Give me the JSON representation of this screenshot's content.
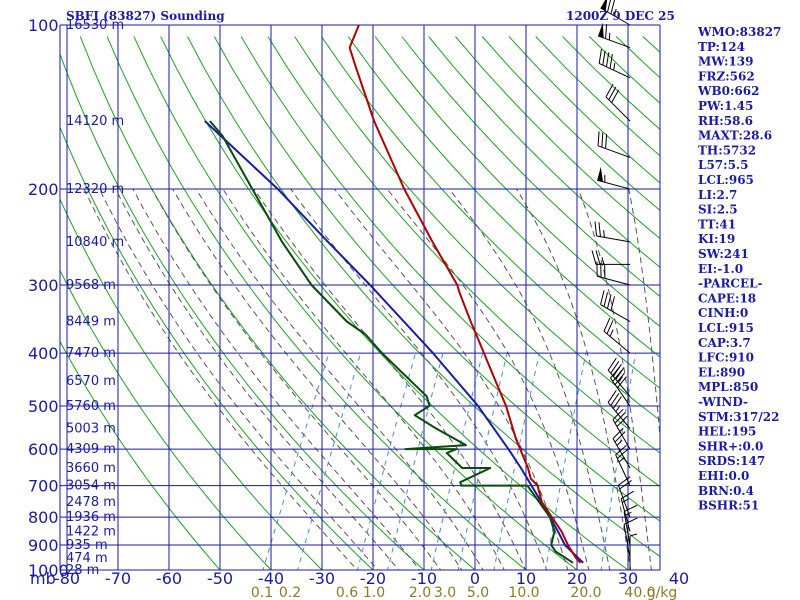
{
  "chart_data": {
    "type": "skew-t log-p sounding",
    "title": "SBFI (83827) Sounding",
    "time": "1200Z  9 DEC 25",
    "pressure_axis_label": "mb",
    "pressure_ticks": [
      100,
      200,
      300,
      400,
      500,
      600,
      700,
      800,
      900,
      1000
    ],
    "temperature_ticks": [
      -80,
      -70,
      -60,
      -50,
      -40,
      -30,
      -20,
      -10,
      0,
      10,
      20,
      30,
      40
    ],
    "temperature_tick_labels": [
      "-80",
      "-70",
      "-60",
      "-50",
      "-40",
      "-30",
      "-20",
      "-10",
      "0",
      "10",
      "20",
      "30",
      "40"
    ],
    "mixing_ratio_labels": [
      "0.1",
      "0.2",
      "0.6",
      "1.0",
      "2.0",
      "3.0",
      "5.0",
      "10.0",
      "20.0",
      "40.0",
      "g/kg"
    ],
    "mixing_ratio_values": [
      0.1,
      0.2,
      0.6,
      1.0,
      2.0,
      3.0,
      5.0,
      10.0,
      20.0,
      40.0
    ],
    "height_labels": [
      {
        "p": 100,
        "label": "16530 m"
      },
      {
        "p": 150,
        "label": "14120 m"
      },
      {
        "p": 200,
        "label": "12320 m"
      },
      {
        "p": 250,
        "label": "10840 m"
      },
      {
        "p": 300,
        "label": "9568 m"
      },
      {
        "p": 350,
        "label": "8449 m"
      },
      {
        "p": 400,
        "label": "7470 m"
      },
      {
        "p": 450,
        "label": "6570 m"
      },
      {
        "p": 500,
        "label": "5760 m"
      },
      {
        "p": 550,
        "label": "5003 m"
      },
      {
        "p": 600,
        "label": "4309 m"
      },
      {
        "p": 650,
        "label": "3660 m"
      },
      {
        "p": 700,
        "label": "3054 m"
      },
      {
        "p": 750,
        "label": "2478 m"
      },
      {
        "p": 800,
        "label": "1936 m"
      },
      {
        "p": 850,
        "label": "1422 m"
      },
      {
        "p": 900,
        "label": "935 m"
      },
      {
        "p": 950,
        "label": "474 m"
      },
      {
        "p": 1000,
        "label": "28 m"
      }
    ],
    "temperature_profile": {
      "name": "Temperature",
      "color": "#b00000",
      "points": [
        {
          "p": 970,
          "t": 20.0
        },
        {
          "p": 950,
          "t": 18.6
        },
        {
          "p": 925,
          "t": 17.2
        },
        {
          "p": 900,
          "t": 15.8
        },
        {
          "p": 850,
          "t": 13.2
        },
        {
          "p": 800,
          "t": 9.9
        },
        {
          "p": 750,
          "t": 6.4
        },
        {
          "p": 700,
          "t": 4.0
        },
        {
          "p": 680,
          "t": 2.0
        },
        {
          "p": 650,
          "t": 0.4
        },
        {
          "p": 600,
          "t": -3.0
        },
        {
          "p": 575,
          "t": -4.8
        },
        {
          "p": 500,
          "t": -10.0
        },
        {
          "p": 450,
          "t": -14.5
        },
        {
          "p": 400,
          "t": -19.5
        },
        {
          "p": 350,
          "t": -25.2
        },
        {
          "p": 310,
          "t": -30.2
        },
        {
          "p": 300,
          "t": -31.4
        },
        {
          "p": 250,
          "t": -40.5
        },
        {
          "p": 200,
          "t": -51.2
        },
        {
          "p": 150,
          "t": -63.8
        },
        {
          "p": 120,
          "t": -72.5
        },
        {
          "p": 110,
          "t": -75.8
        },
        {
          "p": 100,
          "t": -76.2
        }
      ]
    },
    "dewpoint_profile": {
      "name": "Dewpoint",
      "color": "#0a4a0a",
      "points": [
        {
          "p": 970,
          "t": 18.5
        },
        {
          "p": 925,
          "t": 14.0
        },
        {
          "p": 900,
          "t": 12.5
        },
        {
          "p": 850,
          "t": 11.8
        },
        {
          "p": 800,
          "t": 9.5
        },
        {
          "p": 700,
          "t": 2.0
        },
        {
          "p": 700,
          "t": -11.0
        },
        {
          "p": 690,
          "t": -11.5
        },
        {
          "p": 650,
          "t": -7.0
        },
        {
          "p": 650,
          "t": -12.5
        },
        {
          "p": 610,
          "t": -17.0
        },
        {
          "p": 600,
          "t": -15.5
        },
        {
          "p": 600,
          "t": -25.5
        },
        {
          "p": 590,
          "t": -14.0
        },
        {
          "p": 550,
          "t": -21.5
        },
        {
          "p": 520,
          "t": -27.0
        },
        {
          "p": 500,
          "t": -25.0
        },
        {
          "p": 480,
          "t": -26.5
        },
        {
          "p": 400,
          "t": -39.5
        },
        {
          "p": 370,
          "t": -44.5
        },
        {
          "p": 350,
          "t": -49.5
        },
        {
          "p": 300,
          "t": -60.0
        },
        {
          "p": 250,
          "t": -70.0
        },
        {
          "p": 200,
          "t": -81.0
        },
        {
          "p": 160,
          "t": -92.0
        },
        {
          "p": 150,
          "t": -96.0
        }
      ]
    },
    "parcel_profile": {
      "name": "Parcel",
      "color": "#1a1aaa",
      "points": [
        {
          "p": 970,
          "t": 20.5
        },
        {
          "p": 900,
          "t": 15.2
        },
        {
          "p": 850,
          "t": 12.5
        },
        {
          "p": 800,
          "t": 9.5
        },
        {
          "p": 750,
          "t": 6.3
        },
        {
          "p": 700,
          "t": 2.8
        },
        {
          "p": 650,
          "t": -1.0
        },
        {
          "p": 600,
          "t": -5.3
        },
        {
          "p": 500,
          "t": -15.5
        },
        {
          "p": 400,
          "t": -29.5
        },
        {
          "p": 300,
          "t": -48.5
        },
        {
          "p": 250,
          "t": -61.0
        },
        {
          "p": 200,
          "t": -76.0
        },
        {
          "p": 150,
          "t": -97.0
        }
      ]
    },
    "wind_barbs": [
      {
        "p": 100,
        "dir": 300,
        "spd": 75
      },
      {
        "p": 110,
        "dir": 290,
        "spd": 65
      },
      {
        "p": 125,
        "dir": 295,
        "spd": 45
      },
      {
        "p": 150,
        "dir": 315,
        "spd": 30
      },
      {
        "p": 175,
        "dir": 290,
        "spd": 30
      },
      {
        "p": 200,
        "dir": 285,
        "spd": 55
      },
      {
        "p": 250,
        "dir": 280,
        "spd": 25
      },
      {
        "p": 275,
        "dir": 270,
        "spd": 25
      },
      {
        "p": 300,
        "dir": 285,
        "spd": 30
      },
      {
        "p": 350,
        "dir": 300,
        "spd": 40
      },
      {
        "p": 400,
        "dir": 310,
        "spd": 25
      },
      {
        "p": 480,
        "dir": 320,
        "spd": 45
      },
      {
        "p": 500,
        "dir": 325,
        "spd": 40
      },
      {
        "p": 550,
        "dir": 320,
        "spd": 35
      },
      {
        "p": 600,
        "dir": 330,
        "spd": 30
      },
      {
        "p": 650,
        "dir": 330,
        "spd": 25
      },
      {
        "p": 700,
        "dir": 335,
        "spd": 25
      },
      {
        "p": 800,
        "dir": 340,
        "spd": 20
      },
      {
        "p": 850,
        "dir": 345,
        "spd": 15
      },
      {
        "p": 900,
        "dir": 350,
        "spd": 15
      },
      {
        "p": 950,
        "dir": 350,
        "spd": 10
      },
      {
        "p": 1000,
        "dir": 0,
        "spd": 5
      }
    ]
  },
  "indices": [
    "WMO:83827",
    "TP:124",
    "MW:139",
    "FRZ:562",
    "WB0:662",
    "PW:1.45",
    "RH:58.6",
    "MAXT:28.6",
    "TH:5732",
    "L57:5.5",
    "LCL:965",
    "LI:2.7",
    "SI:2.5",
    "TT:41",
    "KI:19",
    "SW:241",
    "EI:-1.0",
    "-PARCEL-",
    "CAPE:18",
    "CINH:0",
    "LCL:915",
    "CAP:3.7",
    "LFC:910",
    "EL:890",
    "MPL:850",
    "-WIND-",
    "STM:317/22",
    "HEL:195",
    "SHR+:0.0",
    "SRDS:147",
    "EHI:0.0",
    "BRN:0.4",
    "BSHR:51"
  ],
  "colors": {
    "grid": "#1a1aaa",
    "dry_adiabat": "#20a020",
    "moist_adiabat": "#555555",
    "mixing_ratio": "#4a8ad0",
    "mixing_label": "#8a7a2a",
    "text": "#1a1aaa"
  }
}
